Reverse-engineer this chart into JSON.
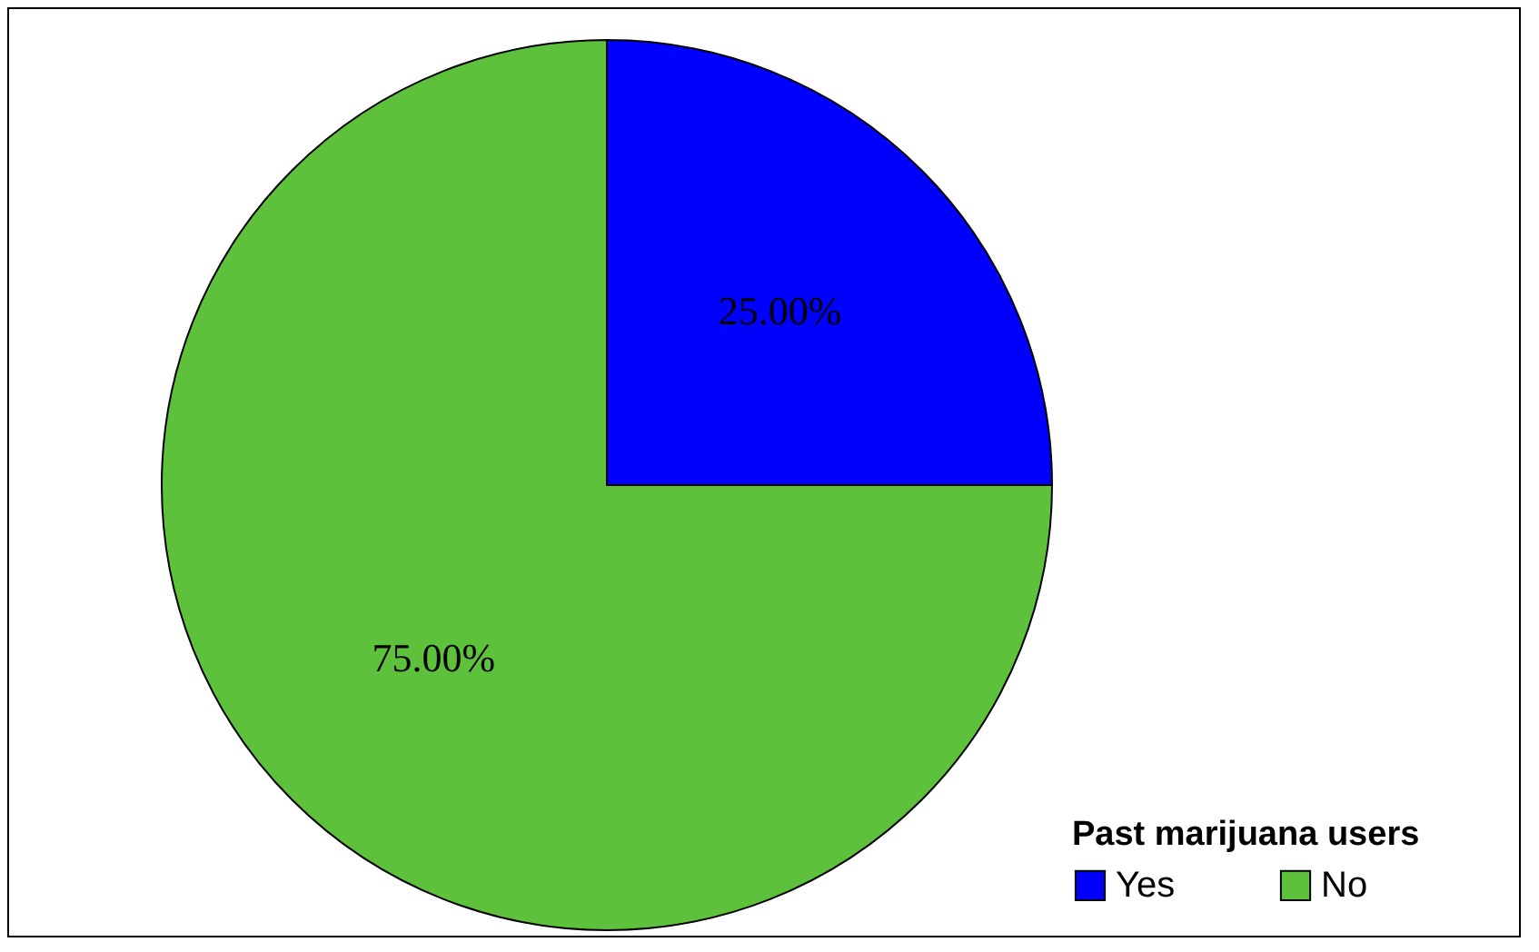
{
  "chart_data": {
    "type": "pie",
    "legend_title": "Past marijuana users",
    "legend": "bottom right",
    "categories": [
      "Yes",
      "No"
    ],
    "values": [
      25,
      75
    ],
    "colors": [
      "#0000ff",
      "#5ec13b"
    ],
    "value_labels": [
      "25.00%",
      "75.00%"
    ]
  }
}
